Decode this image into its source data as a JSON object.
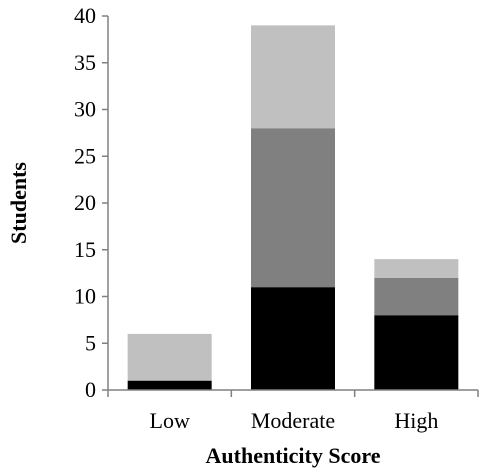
{
  "chart_data": {
    "type": "bar",
    "stacked": true,
    "categories": [
      "Low",
      "Moderate",
      "High"
    ],
    "series": [
      {
        "values": [
          1,
          11,
          8
        ],
        "color": "#000000"
      },
      {
        "values": [
          0,
          17,
          4
        ],
        "color": "#808080"
      },
      {
        "values": [
          5,
          11,
          2
        ],
        "color": "#c0c0c0"
      }
    ],
    "title": "",
    "xlabel": "Authenticity Score",
    "ylabel": "Students",
    "ylim": [
      0,
      40
    ],
    "yticks": [
      0,
      5,
      10,
      15,
      20,
      25,
      30,
      35,
      40
    ],
    "grid": false,
    "legend": "none"
  }
}
